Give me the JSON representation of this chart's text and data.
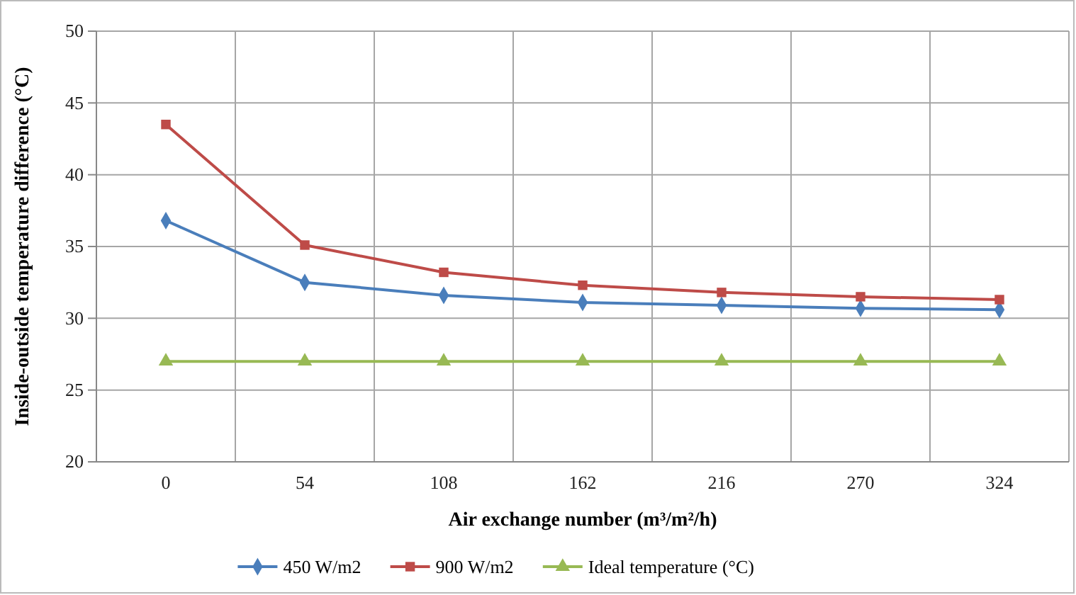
{
  "chart_data": {
    "type": "line",
    "xlabel": "Air exchange number (m³/m²/h)",
    "ylabel": "Inside-outside temperature difference (°C)",
    "categories": [
      "0",
      "54",
      "108",
      "162",
      "216",
      "270",
      "324"
    ],
    "series": [
      {
        "name": "450 W/m2",
        "color": "#4a7ebb",
        "marker": "diamond",
        "values": [
          36.8,
          32.5,
          31.6,
          31.1,
          30.9,
          30.7,
          30.6
        ]
      },
      {
        "name": "900 W/m2",
        "color": "#be4b48",
        "marker": "square",
        "values": [
          43.5,
          35.1,
          33.2,
          32.3,
          31.8,
          31.5,
          31.3
        ]
      },
      {
        "name": "Ideal temperature (°C)",
        "color": "#98b954",
        "marker": "triangle",
        "values": [
          27,
          27,
          27,
          27,
          27,
          27,
          27
        ]
      }
    ],
    "ylim": [
      20,
      50
    ],
    "yticks": [
      20,
      25,
      30,
      35,
      40,
      45,
      50
    ],
    "grid": true,
    "legend": "bottom",
    "line_style": "solid"
  }
}
